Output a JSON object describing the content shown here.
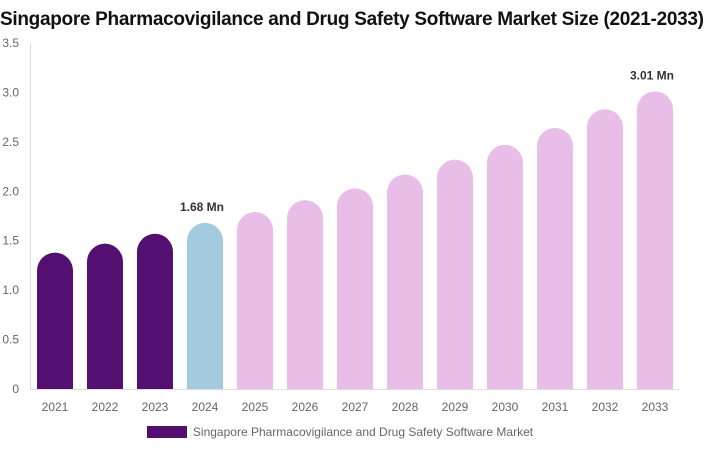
{
  "chart_data": {
    "type": "bar",
    "title": "Singapore Pharmacovigilance and Drug Safety Software Market Size (2021-2033)",
    "categories": [
      "2021",
      "2022",
      "2023",
      "2024",
      "2025",
      "2026",
      "2027",
      "2028",
      "2029",
      "2030",
      "2031",
      "2032",
      "2033"
    ],
    "series": [
      {
        "name": "Singapore Pharmacovigilance and Drug Safety Software Market",
        "values": [
          1.38,
          1.47,
          1.57,
          1.68,
          1.79,
          1.91,
          2.03,
          2.17,
          2.32,
          2.47,
          2.64,
          2.83,
          3.01
        ]
      }
    ],
    "data_labels": {
      "3": "1.68 Mn",
      "12": "3.01 Mn"
    },
    "ylim": [
      0,
      3.5
    ],
    "yticks": [
      "0",
      "0.5",
      "1.0",
      "1.5",
      "2.0",
      "2.5",
      "3.0",
      "3.5"
    ],
    "grid": false,
    "legend_position": "bottom",
    "colors": {
      "historical": "#541070",
      "current": "#a3cadf",
      "forecast": "#e8bde8"
    }
  }
}
